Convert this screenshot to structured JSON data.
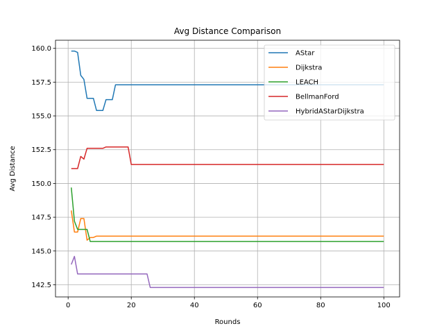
{
  "chart_data": {
    "type": "line",
    "title": "Avg Distance Comparison",
    "xlabel": "Rounds",
    "ylabel": "Avg Distance",
    "xlim": [
      -4,
      105
    ],
    "ylim": [
      141.6,
      160.6
    ],
    "xticks": [
      0,
      20,
      40,
      60,
      80,
      100
    ],
    "yticks": [
      142.5,
      145.0,
      147.5,
      150.0,
      152.5,
      155.0,
      157.5,
      160.0
    ],
    "ytick_labels": [
      "142.5",
      "145.0",
      "147.5",
      "150.0",
      "152.5",
      "155.0",
      "157.5",
      "160.0"
    ],
    "grid": true,
    "legend_position": "top-right",
    "series": [
      {
        "name": "AStar",
        "color": "#1f77b4",
        "points": [
          [
            1,
            159.8
          ],
          [
            2,
            159.8
          ],
          [
            3,
            159.7
          ],
          [
            4,
            158.0
          ],
          [
            5,
            157.7
          ],
          [
            6,
            156.3
          ],
          [
            7,
            156.3
          ],
          [
            8,
            156.3
          ],
          [
            9,
            155.4
          ],
          [
            10,
            155.4
          ],
          [
            11,
            155.4
          ],
          [
            12,
            156.2
          ],
          [
            13,
            156.2
          ],
          [
            14,
            156.2
          ],
          [
            15,
            157.3
          ],
          [
            20,
            157.3
          ],
          [
            100,
            157.3
          ]
        ]
      },
      {
        "name": "Dijkstra",
        "color": "#ff7f0e",
        "points": [
          [
            1,
            148.0
          ],
          [
            2,
            146.4
          ],
          [
            3,
            146.4
          ],
          [
            4,
            147.4
          ],
          [
            5,
            147.4
          ],
          [
            6,
            145.8
          ],
          [
            7,
            146.0
          ],
          [
            8,
            146.0
          ],
          [
            9,
            146.1
          ],
          [
            100,
            146.1
          ]
        ]
      },
      {
        "name": "LEACH",
        "color": "#2ca02c",
        "points": [
          [
            1,
            149.7
          ],
          [
            2,
            147.2
          ],
          [
            3,
            146.6
          ],
          [
            4,
            146.6
          ],
          [
            5,
            146.6
          ],
          [
            6,
            146.6
          ],
          [
            7,
            145.7
          ],
          [
            100,
            145.7
          ]
        ]
      },
      {
        "name": "BellmanFord",
        "color": "#d62728",
        "points": [
          [
            1,
            151.1
          ],
          [
            2,
            151.1
          ],
          [
            3,
            151.1
          ],
          [
            4,
            152.0
          ],
          [
            5,
            151.8
          ],
          [
            6,
            152.6
          ],
          [
            7,
            152.6
          ],
          [
            8,
            152.6
          ],
          [
            11,
            152.6
          ],
          [
            12,
            152.7
          ],
          [
            19,
            152.7
          ],
          [
            20,
            151.4
          ],
          [
            100,
            151.4
          ]
        ]
      },
      {
        "name": "HybridAStarDijkstra",
        "color": "#9467bd",
        "points": [
          [
            1,
            144.0
          ],
          [
            2,
            144.6
          ],
          [
            3,
            143.3
          ],
          [
            4,
            143.3
          ],
          [
            25,
            143.3
          ],
          [
            26,
            142.3
          ],
          [
            100,
            142.3
          ]
        ]
      }
    ]
  }
}
